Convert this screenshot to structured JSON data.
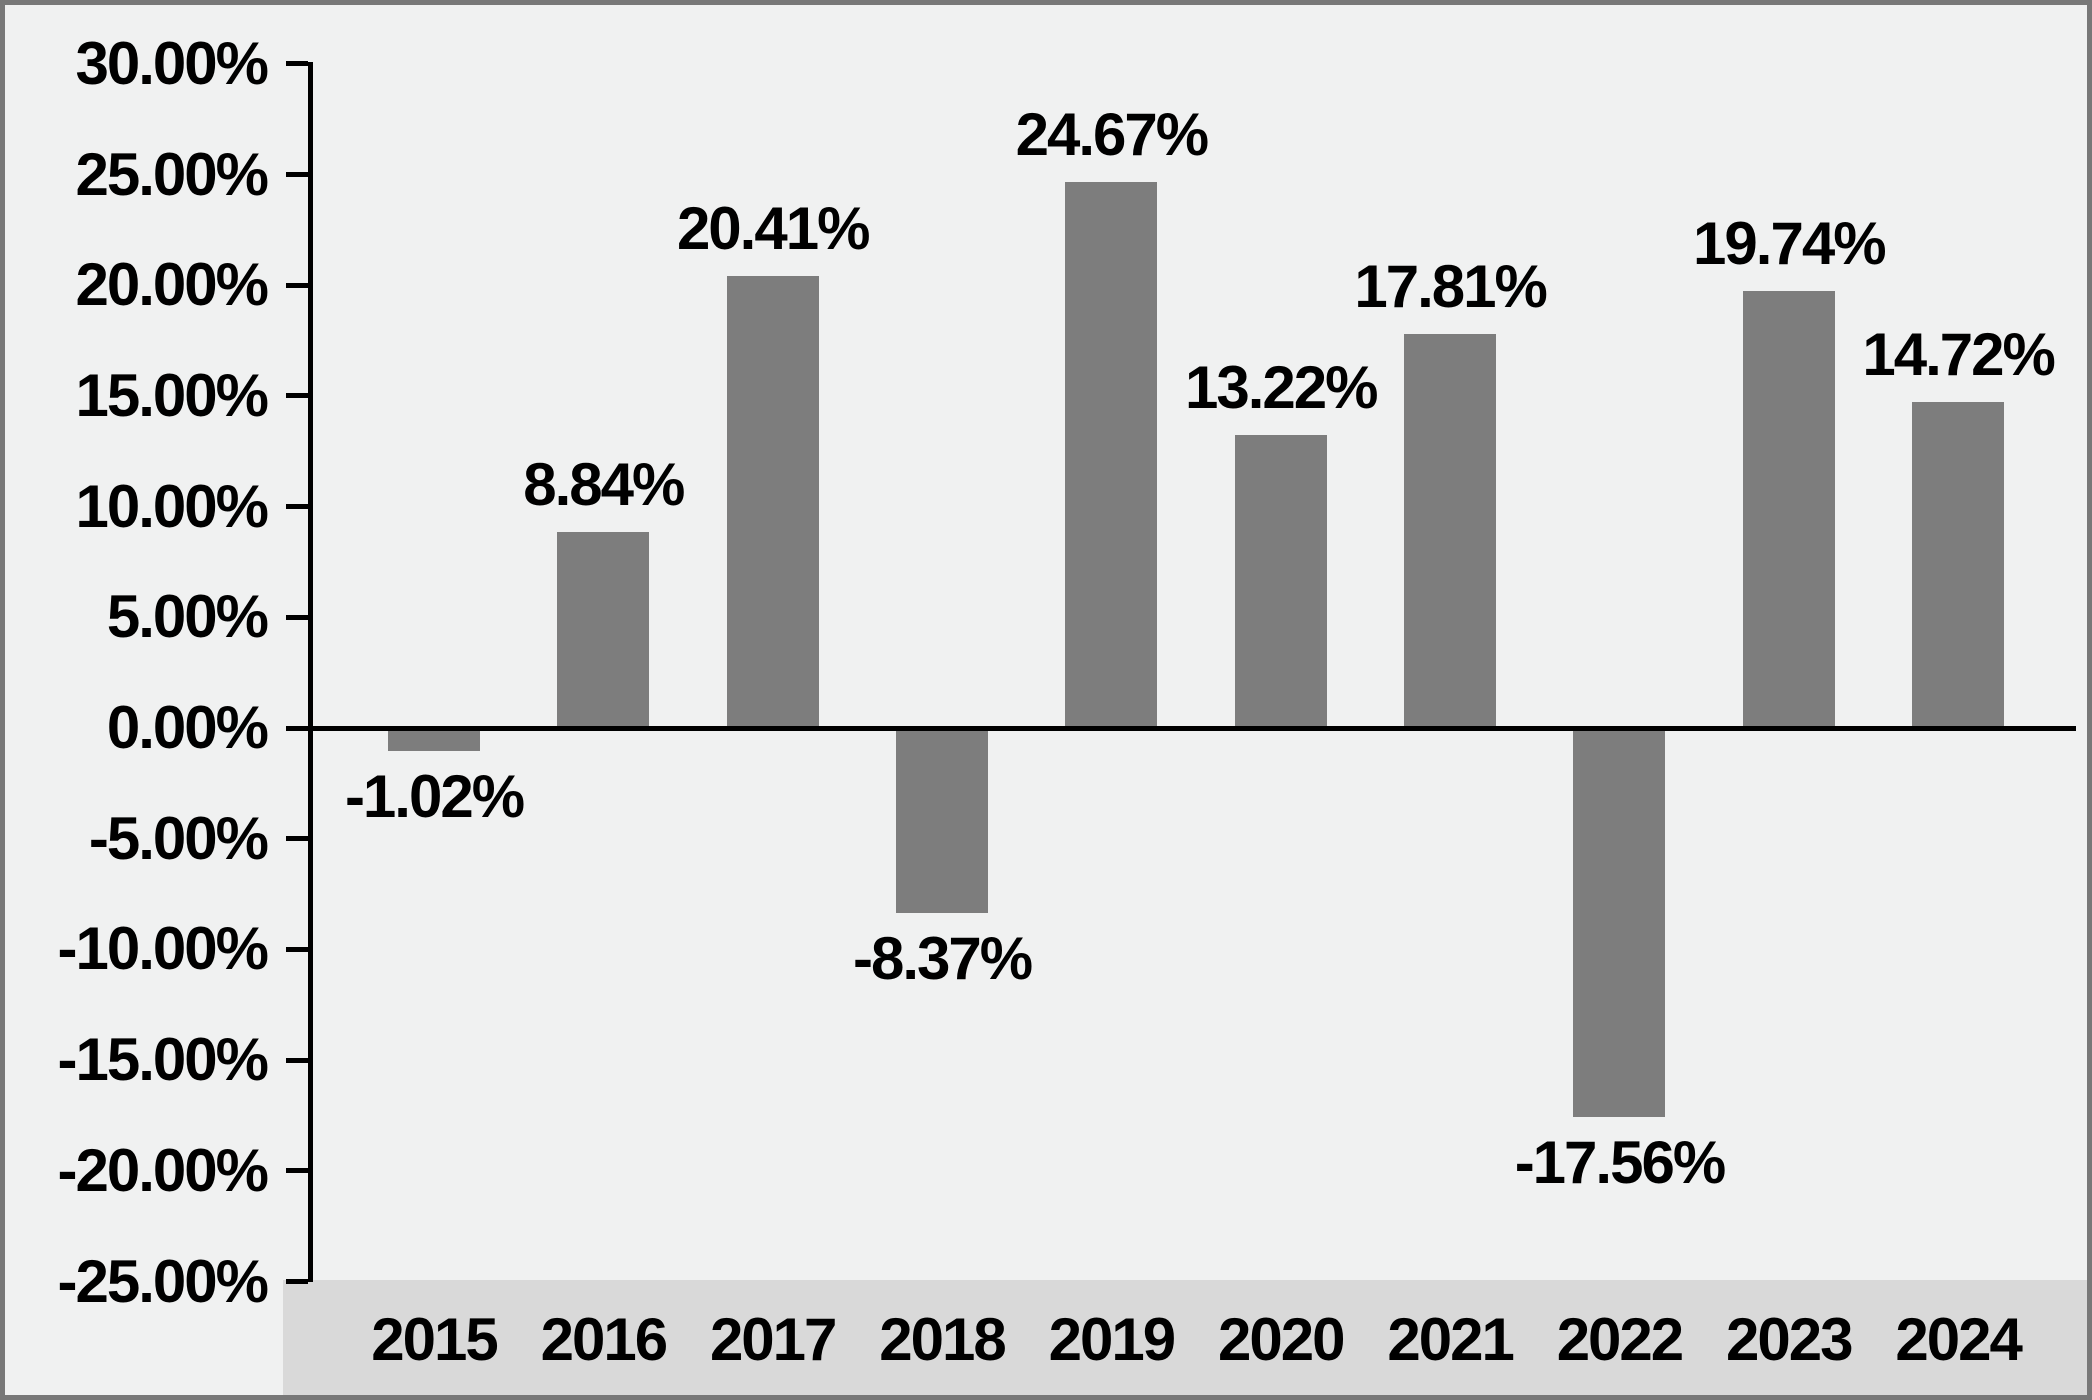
{
  "chart_data": {
    "type": "bar",
    "title": "",
    "xlabel": "",
    "ylabel": "",
    "categories": [
      "2015",
      "2016",
      "2017",
      "2018",
      "2019",
      "2020",
      "2021",
      "2022",
      "2023",
      "2024"
    ],
    "values": [
      -1.02,
      8.84,
      20.41,
      -8.37,
      24.67,
      13.22,
      17.81,
      -17.56,
      19.74,
      14.72
    ],
    "data_labels": [
      "-1.02%",
      "8.84%",
      "20.41%",
      "-8.37%",
      "24.67%",
      "13.22%",
      "17.81%",
      "-17.56%",
      "19.74%",
      "14.72%"
    ],
    "y_ticks": [
      {
        "value": 30,
        "label": "30.00%"
      },
      {
        "value": 25,
        "label": "25.00%"
      },
      {
        "value": 20,
        "label": "20.00%"
      },
      {
        "value": 15,
        "label": "15.00%"
      },
      {
        "value": 10,
        "label": "10.00%"
      },
      {
        "value": 5,
        "label": "5.00%"
      },
      {
        "value": 0,
        "label": "0.00%"
      },
      {
        "value": -5,
        "label": "-5.00%"
      },
      {
        "value": -10,
        "label": "-10.00%"
      },
      {
        "value": -15,
        "label": "-15.00%"
      },
      {
        "value": -20,
        "label": "-20.00%"
      },
      {
        "value": -25,
        "label": "-25.00%"
      }
    ],
    "ylim": [
      -25,
      30
    ],
    "grid": false,
    "legend": false,
    "colors": {
      "bar": "#7d7d7d",
      "plot_background": "#f0f1f1",
      "x_band_background": "#d9d9d9",
      "axis": "#000000",
      "text": "#000000",
      "outer_border": "#787878"
    }
  }
}
